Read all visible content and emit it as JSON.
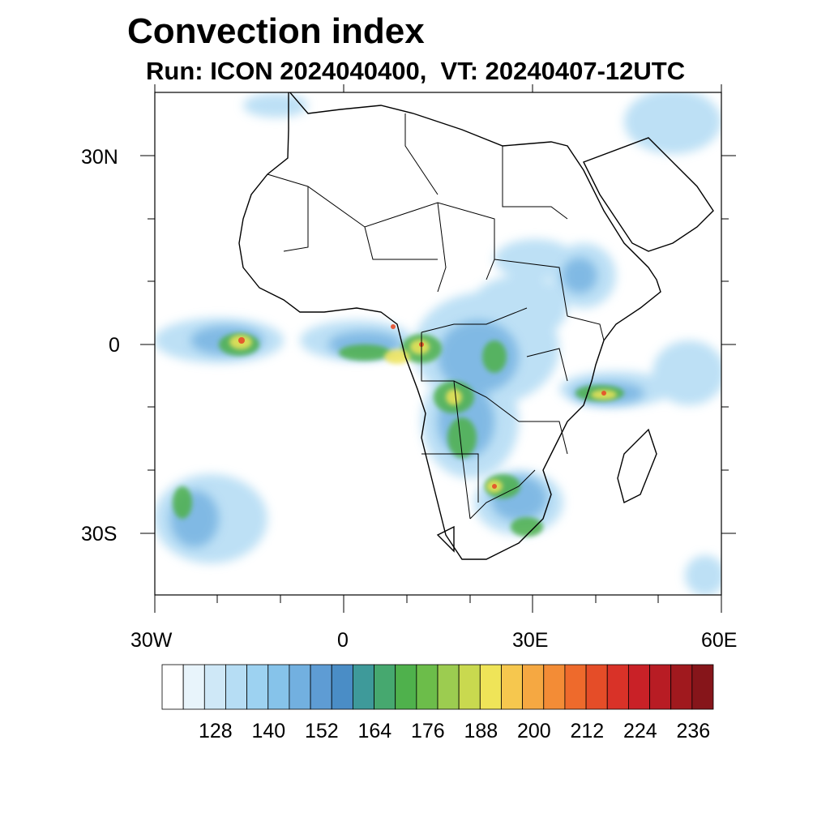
{
  "title": "Convection index",
  "subtitle": "Run: ICON 2024040400,  VT: 20240407-12UTC",
  "axes": {
    "lat_labels": [
      "30N",
      "0",
      "30S"
    ],
    "lon_labels": [
      "30W",
      "0",
      "30E",
      "60E"
    ]
  },
  "colorbar": {
    "tick_labels": [
      "128",
      "140",
      "152",
      "164",
      "176",
      "188",
      "200",
      "212",
      "224",
      "236"
    ],
    "colors": [
      "#ffffff",
      "#e8f4fb",
      "#cfe8f7",
      "#b6ddf4",
      "#9dd2f1",
      "#86c3ea",
      "#72b0e0",
      "#5e9cd4",
      "#4a8dc6",
      "#3e9a9a",
      "#46a86f",
      "#4fb14c",
      "#6cbd4a",
      "#9ccc50",
      "#c9d94f",
      "#efe458",
      "#f6c74e",
      "#f5a842",
      "#f38c36",
      "#ee6a2c",
      "#e54d28",
      "#d93228",
      "#c92127",
      "#b81c24",
      "#a0191e",
      "#86151a"
    ]
  },
  "field": {
    "name": "convection index",
    "units_range": [
      116,
      242
    ]
  }
}
